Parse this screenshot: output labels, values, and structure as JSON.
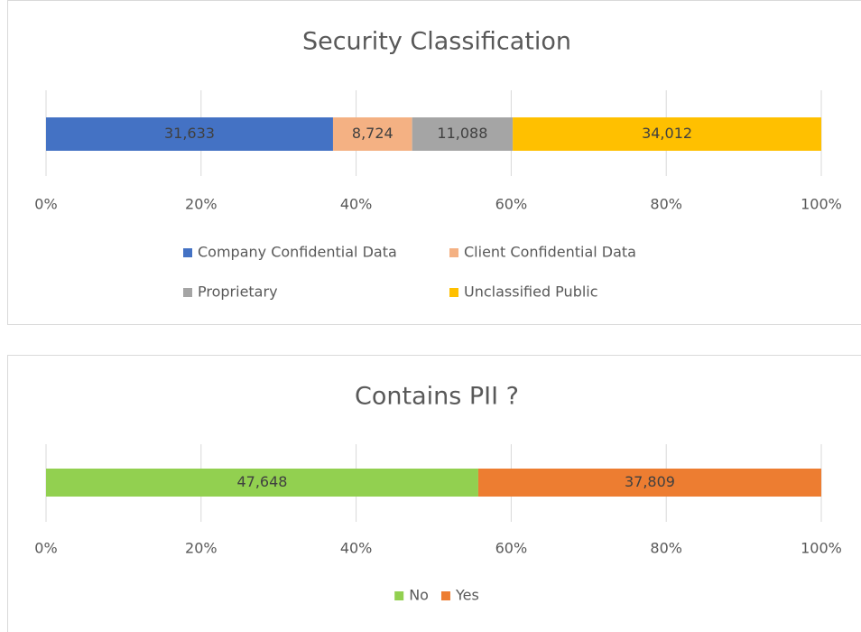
{
  "chart_data": [
    {
      "type": "bar",
      "stacked_percent": true,
      "title": "Security Classification",
      "categories": [
        null
      ],
      "series": [
        {
          "name": "Company Confidential Data",
          "color": "#4472c4",
          "values": [
            31633
          ],
          "value_labels": [
            "31,633"
          ]
        },
        {
          "name": "Client Confidential Data",
          "color": "#f4b183",
          "values": [
            8724
          ],
          "value_labels": [
            "8,724"
          ]
        },
        {
          "name": "Proprietary",
          "color": "#a5a5a5",
          "values": [
            11088
          ],
          "value_labels": [
            "11,088"
          ]
        },
        {
          "name": "Unclassified Public",
          "color": "#ffc000",
          "values": [
            34012
          ],
          "value_labels": [
            "34,012"
          ]
        }
      ],
      "xlim": [
        0,
        100
      ],
      "xticks": [
        {
          "value": 0,
          "label": "0%"
        },
        {
          "value": 20,
          "label": "20%"
        },
        {
          "value": 40,
          "label": "40%"
        },
        {
          "value": 60,
          "label": "60%"
        },
        {
          "value": 80,
          "label": "80%"
        },
        {
          "value": 100,
          "label": "100%"
        }
      ],
      "grid": true,
      "legend": "bottom"
    },
    {
      "type": "bar",
      "stacked_percent": true,
      "title": "Contains PII ?",
      "categories": [
        null
      ],
      "series": [
        {
          "name": "No",
          "color": "#92d050",
          "values": [
            47648
          ],
          "value_labels": [
            "47,648"
          ]
        },
        {
          "name": "Yes",
          "color": "#ed7d31",
          "values": [
            37809
          ],
          "value_labels": [
            "37,809"
          ]
        }
      ],
      "xlim": [
        0,
        100
      ],
      "xticks": [
        {
          "value": 0,
          "label": "0%"
        },
        {
          "value": 20,
          "label": "20%"
        },
        {
          "value": 40,
          "label": "40%"
        },
        {
          "value": 60,
          "label": "60%"
        },
        {
          "value": 80,
          "label": "80%"
        },
        {
          "value": 100,
          "label": "100%"
        }
      ],
      "grid": true,
      "legend": "bottom"
    }
  ]
}
